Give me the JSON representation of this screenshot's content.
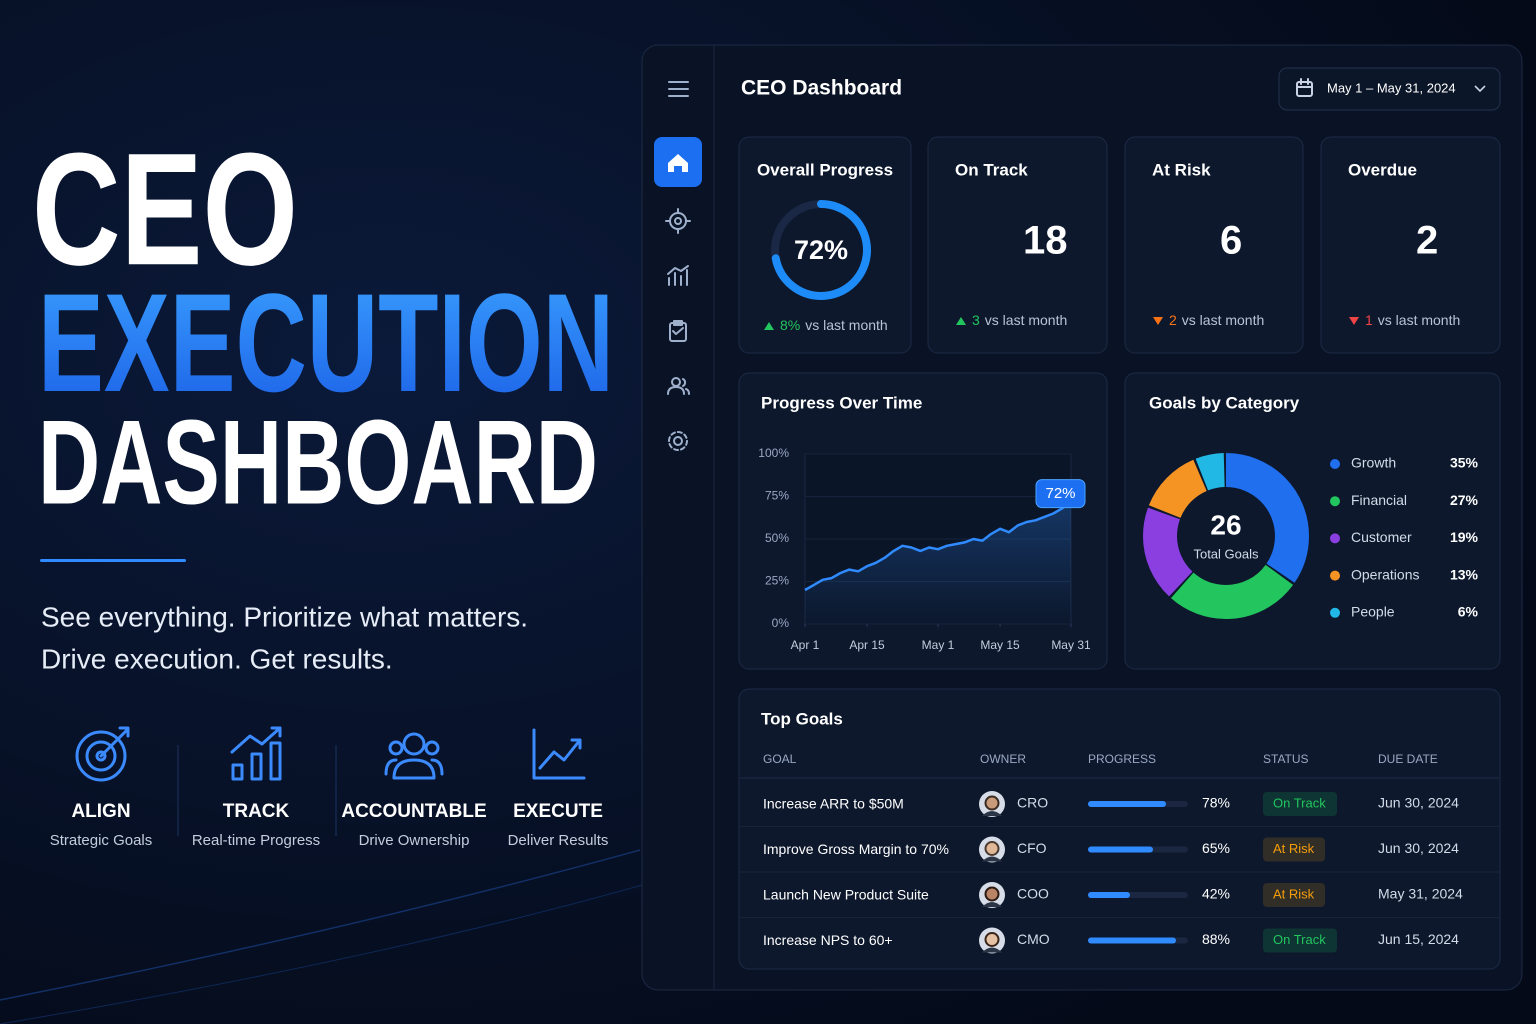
{
  "hero": {
    "title_lines": [
      "CEO",
      "EXECUTION",
      "DASHBOARD"
    ],
    "tagline_lines": [
      "See everything. Prioritize what matters.",
      "Drive execution. Get results."
    ],
    "pillars": [
      {
        "title": "ALIGN",
        "subtitle": "Strategic Goals"
      },
      {
        "title": "TRACK",
        "subtitle": "Real-time Progress"
      },
      {
        "title": "ACCOUNTABLE",
        "subtitle": "Drive Ownership"
      },
      {
        "title": "EXECUTE",
        "subtitle": "Deliver Results"
      }
    ]
  },
  "dashboard": {
    "title": "CEO Dashboard",
    "date_range": "May 1 – May 31, 2024",
    "kpis": [
      {
        "title": "Overall Progress",
        "value": 72,
        "value_label": "72%",
        "color": "#1d8cf8",
        "change": 8,
        "change_label": "8%",
        "change_direction": "up",
        "change_color": "#22c55e",
        "change_text": "vs last month"
      },
      {
        "title": "On Track",
        "value": 18,
        "color": "#22c55e",
        "change": 3,
        "change_direction": "up",
        "change_color": "#22c55e",
        "change_text": "vs last month"
      },
      {
        "title": "At Risk",
        "value": 6,
        "color": "#f59e0b",
        "change": 2,
        "change_direction": "down",
        "change_color": "#f97316",
        "change_text": "vs last month"
      },
      {
        "title": "Overdue",
        "value": 2,
        "color": "#ef4444",
        "change": 1,
        "change_direction": "down",
        "change_color": "#ef4444",
        "change_text": "vs last month"
      }
    ],
    "top_goals": {
      "title": "Top Goals",
      "columns": [
        "GOAL",
        "OWNER",
        "PROGRESS",
        "STATUS",
        "DUE DATE"
      ],
      "rows": [
        {
          "goal": "Increase ARR to $50M",
          "owner": "CRO",
          "progress": {
            "value": 78,
            "label": "78%"
          },
          "status": "On Track",
          "status_color": "#22c55e",
          "due": "Jun 30, 2024"
        },
        {
          "goal": "Improve Gross Margin to 70%",
          "owner": "CFO",
          "progress": {
            "value": 65,
            "label": "65%"
          },
          "status": "At Risk",
          "status_color": "#f59e0b",
          "due": "Jun 30, 2024"
        },
        {
          "goal": "Launch New Product Suite",
          "owner": "COO",
          "progress": {
            "value": 42,
            "label": "42%"
          },
          "status": "At Risk",
          "status_color": "#f59e0b",
          "due": "May 31, 2024"
        },
        {
          "goal": "Increase NPS to 60+",
          "owner": "CMO",
          "progress": {
            "value": 88,
            "label": "88%"
          },
          "status": "On Track",
          "status_color": "#22c55e",
          "due": "Jun 15, 2024"
        }
      ]
    }
  },
  "chart_data": [
    {
      "type": "line",
      "title": "Progress Over Time",
      "x": [
        0,
        2,
        4,
        6,
        8,
        10,
        12,
        14,
        16,
        18,
        20,
        22,
        24,
        26,
        28,
        30,
        32,
        34,
        36,
        38,
        40,
        42,
        44,
        46,
        48,
        50,
        52,
        54,
        56,
        58,
        60
      ],
      "values": [
        20,
        23,
        26,
        27,
        30,
        32,
        31,
        34,
        36,
        39,
        43,
        46,
        45,
        43,
        45,
        44,
        46,
        47,
        48,
        50,
        49,
        53,
        56,
        54,
        58,
        60,
        61,
        63,
        65,
        68,
        72
      ],
      "annotation": "72%",
      "color": "#2f8bff",
      "xlim": [
        0,
        60
      ],
      "xticks": [
        {
          "value": 0,
          "label": "Apr 1"
        },
        {
          "value": 14,
          "label": "Apr 15"
        },
        {
          "value": 30,
          "label": "May 1"
        },
        {
          "value": 44,
          "label": "May 15"
        },
        {
          "value": 60,
          "label": "May 31"
        }
      ],
      "ylim": [
        0,
        100
      ],
      "yticks": [
        {
          "value": 0,
          "label": "0%"
        },
        {
          "value": 25,
          "label": "25%"
        },
        {
          "value": 50,
          "label": "50%"
        },
        {
          "value": 75,
          "label": "75%"
        },
        {
          "value": 100,
          "label": "100%"
        }
      ],
      "grid": true
    },
    {
      "type": "donut",
      "title": "Goals by Category",
      "center_value": 26,
      "center_label": "Total Goals",
      "categories": [
        "Growth",
        "Financial",
        "Customer",
        "Operations",
        "People"
      ],
      "values": [
        35,
        27,
        19,
        13,
        6
      ],
      "value_labels": [
        "35%",
        "27%",
        "19%",
        "13%",
        "6%"
      ],
      "colors": [
        "#1f6fef",
        "#22c55e",
        "#8b3fe0",
        "#f59323",
        "#22b8e6"
      ]
    }
  ]
}
